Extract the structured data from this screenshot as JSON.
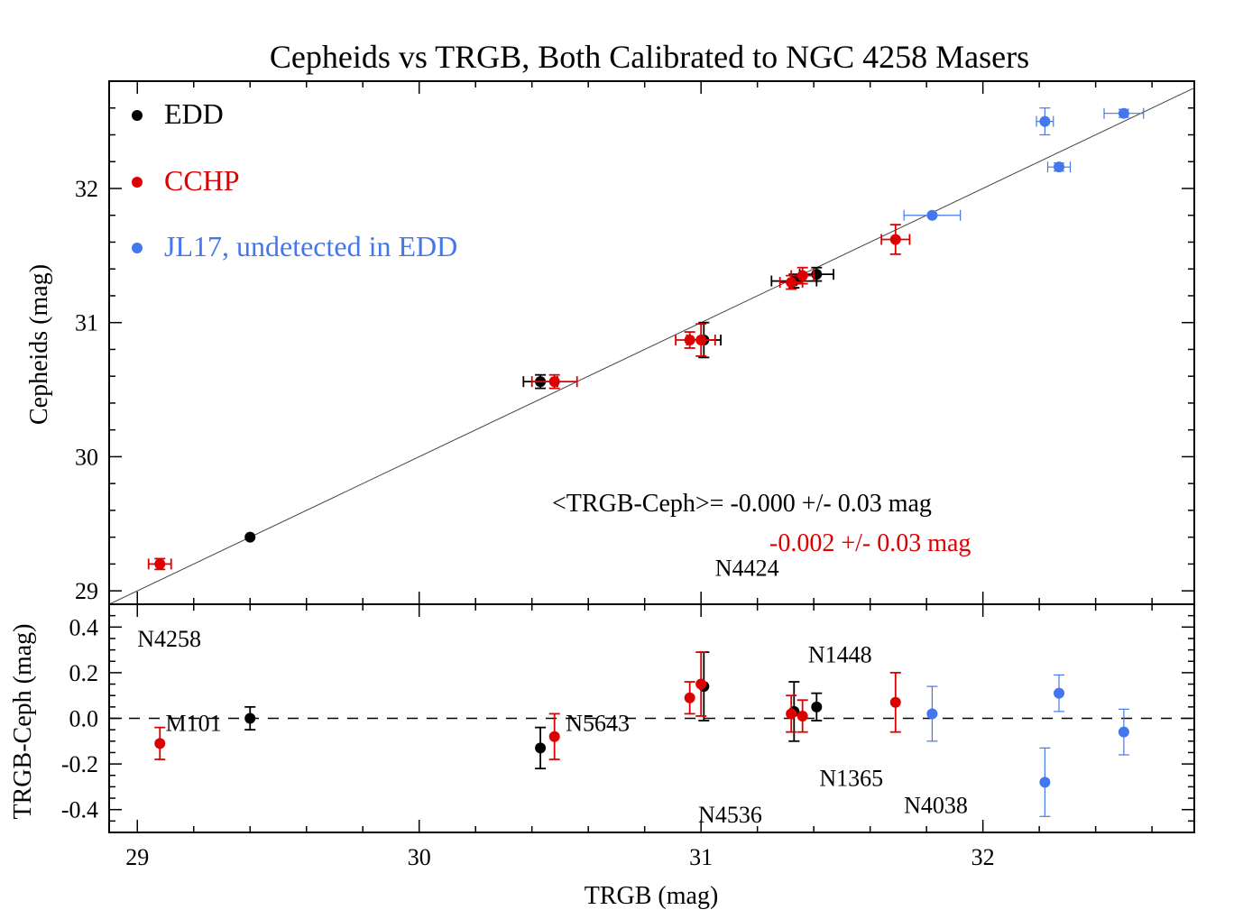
{
  "chart_data": [
    {
      "type": "scatter",
      "panel": "top",
      "title": "Cepheids vs TRGB, Both Calibrated to NGC 4258 Masers",
      "xlabel": "",
      "ylabel": "Cepheids (mag)",
      "xlim": [
        28.9,
        32.75
      ],
      "ylim": [
        28.9,
        32.8
      ],
      "x_ticks": [
        29,
        30,
        31,
        32
      ],
      "y_ticks": [
        29,
        30,
        31,
        32
      ],
      "y_tick_labels": [
        "29",
        "30",
        "31",
        "32"
      ],
      "reference_line": "one-to-one",
      "legend_position": "top-left",
      "legend": [
        {
          "label": "EDD",
          "color": "#000000"
        },
        {
          "label": "CCHP",
          "color": "#dd0000"
        },
        {
          "label": "JL17, undetected in EDD",
          "color": "#4477ee"
        }
      ],
      "annotations": [
        {
          "text": "<TRGB-Ceph>= -0.000 +/- 0.03  mag",
          "color": "#000000"
        },
        {
          "text": "-0.002 +/- 0.03  mag",
          "color": "#dd0000"
        }
      ],
      "series": [
        {
          "name": "EDD",
          "color": "#000000",
          "points": [
            {
              "x": 29.4,
              "y": 29.4,
              "xerr": 0.0,
              "yerr": 0.0
            },
            {
              "x": 30.43,
              "y": 30.56,
              "xerr": 0.06,
              "yerr": 0.05
            },
            {
              "x": 31.01,
              "y": 30.87,
              "xerr": 0.06,
              "yerr": 0.13
            },
            {
              "x": 31.33,
              "y": 31.31,
              "xerr": 0.08,
              "yerr": 0.05
            },
            {
              "x": 31.41,
              "y": 31.36,
              "xerr": 0.06,
              "yerr": 0.05
            }
          ]
        },
        {
          "name": "CCHP",
          "color": "#dd0000",
          "points": [
            {
              "x": 29.08,
              "y": 29.2,
              "xerr": 0.04,
              "yerr": 0.04
            },
            {
              "x": 30.48,
              "y": 30.56,
              "xerr": 0.08,
              "yerr": 0.05
            },
            {
              "x": 30.96,
              "y": 30.87,
              "xerr": 0.05,
              "yerr": 0.06
            },
            {
              "x": 31.0,
              "y": 30.87,
              "xerr": 0.05,
              "yerr": 0.12
            },
            {
              "x": 31.32,
              "y": 31.3,
              "xerr": 0.04,
              "yerr": 0.05
            },
            {
              "x": 31.36,
              "y": 31.35,
              "xerr": 0.04,
              "yerr": 0.06
            },
            {
              "x": 31.69,
              "y": 31.62,
              "xerr": 0.05,
              "yerr": 0.11
            }
          ]
        },
        {
          "name": "JL17, undetected in EDD",
          "color": "#4477ee",
          "points": [
            {
              "x": 31.82,
              "y": 31.8,
              "xerr": 0.1,
              "yerr": 0.0
            },
            {
              "x": 32.22,
              "y": 32.5,
              "xerr": 0.03,
              "yerr": 0.1
            },
            {
              "x": 32.27,
              "y": 32.16,
              "xerr": 0.04,
              "yerr": 0.03
            },
            {
              "x": 32.5,
              "y": 32.56,
              "xerr": 0.07,
              "yerr": 0.03
            }
          ]
        }
      ]
    },
    {
      "type": "scatter",
      "panel": "bottom",
      "xlabel": "TRGB (mag)",
      "ylabel": "TRGB-Ceph (mag)",
      "xlim": [
        28.9,
        32.75
      ],
      "ylim": [
        -0.5,
        0.5
      ],
      "x_ticks": [
        29,
        30,
        31,
        32
      ],
      "x_tick_labels": [
        "29",
        "30",
        "31",
        "32"
      ],
      "y_ticks": [
        -0.4,
        -0.2,
        0.0,
        0.2,
        0.4
      ],
      "y_tick_labels": [
        "-0.4",
        "-0.2",
        "0.0",
        "0.2",
        "0.4"
      ],
      "reference_line": "zero, dashed",
      "galaxy_labels": [
        {
          "text": "M101",
          "x": 29.1,
          "y": -0.02
        },
        {
          "text": "N4258",
          "x": 29.0,
          "y": 0.35
        },
        {
          "text": "N5643",
          "x": 30.52,
          "y": -0.02
        },
        {
          "text": "N4424",
          "x": 31.05,
          "y": 0.66
        },
        {
          "text": "N4536",
          "x": 30.99,
          "y": -0.42
        },
        {
          "text": "N1448",
          "x": 31.38,
          "y": 0.28
        },
        {
          "text": "N1365",
          "x": 31.42,
          "y": -0.26
        },
        {
          "text": "N4038",
          "x": 31.72,
          "y": -0.38
        }
      ],
      "series": [
        {
          "name": "EDD",
          "color": "#000000",
          "points": [
            {
              "x": 29.4,
              "y": 0.0,
              "yerr": 0.05
            },
            {
              "x": 30.43,
              "y": -0.13,
              "yerr": 0.09
            },
            {
              "x": 31.01,
              "y": 0.14,
              "yerr": 0.15
            },
            {
              "x": 31.33,
              "y": 0.03,
              "yerr": 0.13
            },
            {
              "x": 31.41,
              "y": 0.05,
              "yerr": 0.06
            }
          ]
        },
        {
          "name": "CCHP",
          "color": "#dd0000",
          "points": [
            {
              "x": 29.08,
              "y": -0.11,
              "yerr": 0.07
            },
            {
              "x": 30.48,
              "y": -0.08,
              "yerr": 0.1
            },
            {
              "x": 30.96,
              "y": 0.09,
              "yerr": 0.07
            },
            {
              "x": 31.0,
              "y": 0.15,
              "yerr": 0.14
            },
            {
              "x": 31.32,
              "y": 0.02,
              "yerr": 0.08
            },
            {
              "x": 31.36,
              "y": 0.01,
              "yerr": 0.07
            },
            {
              "x": 31.69,
              "y": 0.07,
              "yerr": 0.13
            }
          ]
        },
        {
          "name": "JL17, undetected in EDD",
          "color": "#4477ee",
          "points": [
            {
              "x": 31.82,
              "y": 0.02,
              "yerr": 0.12
            },
            {
              "x": 32.22,
              "y": -0.28,
              "yerr": 0.15
            },
            {
              "x": 32.27,
              "y": 0.11,
              "yerr": 0.08
            },
            {
              "x": 32.5,
              "y": -0.06,
              "yerr": 0.1
            }
          ]
        }
      ]
    }
  ]
}
